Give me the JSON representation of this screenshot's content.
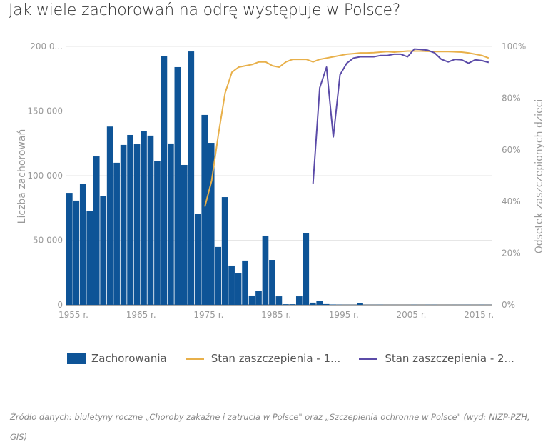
{
  "title": "Jak wiele zachorowań na odrę występuje w Polsce?",
  "colors": {
    "bars": "#0e5497",
    "line1": "#e8b04a",
    "line2": "#5b4ba8",
    "grid": "#e6e6e6",
    "text": "#9a9a9a"
  },
  "legend": {
    "items": [
      {
        "label": "Zachorowania",
        "type": "bar"
      },
      {
        "label": "Stan zaszczepienia - 1...",
        "type": "line"
      },
      {
        "label": "Stan zaszczepienia - 2...",
        "type": "line"
      }
    ]
  },
  "source": "Źródło danych: biuletyny roczne „Choroby zakaźne i zatrucia w Polsce\" oraz „Szczepienia ochronne w Polsce\" (wyd: NIZP-PZH, GIS)",
  "chart_data": {
    "type": "bar",
    "title": "Jak wiele zachorowań na odrę występuje w Polsce?",
    "xlabel": "",
    "ylabel": "Liczba zachorowań",
    "y2label": "Odsetek zaszczepionych dzieci",
    "ylim": [
      0,
      200000
    ],
    "y2lim": [
      0,
      100
    ],
    "y_ticks": [
      "0",
      "50 000",
      "100 000",
      "150 000",
      "200 0..."
    ],
    "y2_ticks": [
      "0%",
      "20%",
      "40%",
      "60%",
      "80%",
      "100%"
    ],
    "x_ticks": [
      "1955 r.",
      "1965 r.",
      "1975 r.",
      "1985 r.",
      "1995 r.",
      "2005 r.",
      "2015 r."
    ],
    "grid": true,
    "legend_position": "bottom",
    "categories": [
      1955,
      1956,
      1957,
      1958,
      1959,
      1960,
      1961,
      1962,
      1963,
      1964,
      1965,
      1966,
      1967,
      1968,
      1969,
      1970,
      1971,
      1972,
      1973,
      1974,
      1975,
      1976,
      1977,
      1978,
      1979,
      1980,
      1981,
      1982,
      1983,
      1984,
      1985,
      1986,
      1987,
      1988,
      1989,
      1990,
      1991,
      1992,
      1993,
      1994,
      1995,
      1996,
      1997,
      1998,
      1999,
      2000,
      2001,
      2002,
      2003,
      2004,
      2005,
      2006,
      2007,
      2008,
      2009,
      2010,
      2011,
      2012,
      2013,
      2014,
      2015,
      2016,
      2017
    ],
    "series": [
      {
        "name": "Zachorowania",
        "type": "bar",
        "axis": "left",
        "values": [
          86700,
          80700,
          93400,
          72900,
          114900,
          84500,
          138000,
          110000,
          123800,
          131500,
          124300,
          134300,
          131000,
          111600,
          192300,
          124900,
          184000,
          108300,
          196100,
          70200,
          147000,
          125400,
          44800,
          83400,
          30400,
          24300,
          34300,
          7200,
          10500,
          53600,
          34800,
          6600,
          500,
          500,
          6600,
          55800,
          1700,
          2800,
          600,
          300,
          200,
          100,
          100,
          1600,
          100,
          80,
          140,
          40,
          50,
          20,
          40,
          120,
          40,
          115,
          115,
          13,
          38,
          70,
          84,
          110,
          48,
          130,
          63
        ]
      },
      {
        "name": "Stan zaszczepienia - 1 dawka",
        "type": "line",
        "axis": "right",
        "x": [
          1975,
          1976,
          1977,
          1978,
          1979,
          1980,
          1981,
          1982,
          1983,
          1984,
          1985,
          1986,
          1987,
          1988,
          1989,
          1990,
          1991,
          1992,
          1993,
          1994,
          1995,
          1996,
          1997,
          1998,
          1999,
          2000,
          2001,
          2002,
          2003,
          2004,
          2005,
          2006,
          2007,
          2008,
          2009,
          2010,
          2011,
          2012,
          2013,
          2014,
          2015,
          2016,
          2017
        ],
        "values": [
          38,
          48,
          66,
          82,
          90,
          92,
          92.5,
          93,
          94,
          94,
          92.5,
          92,
          94,
          95,
          95,
          95,
          94,
          95,
          95.5,
          96,
          96.5,
          97,
          97.2,
          97.5,
          97.5,
          97.6,
          97.8,
          98,
          97.8,
          98,
          98.2,
          98.2,
          98.2,
          98.1,
          98,
          98,
          98,
          97.9,
          97.8,
          97.5,
          97,
          96.5,
          95.5
        ]
      },
      {
        "name": "Stan zaszczepienia - 2 dawki",
        "type": "line",
        "axis": "right",
        "x": [
          1991,
          1992,
          1993,
          1994,
          1995,
          1996,
          1997,
          1998,
          1999,
          2000,
          2001,
          2002,
          2003,
          2004,
          2005,
          2006,
          2007,
          2008,
          2009,
          2010,
          2011,
          2012,
          2013,
          2014,
          2015,
          2016,
          2017
        ],
        "values": [
          47,
          84,
          92,
          65,
          89,
          93.5,
          95.5,
          96,
          96,
          96,
          96.5,
          96.5,
          97,
          97,
          96,
          99,
          98.8,
          98.5,
          97.5,
          95,
          94,
          95,
          94.8,
          93.5,
          94.8,
          94.5,
          93.8
        ]
      }
    ]
  }
}
